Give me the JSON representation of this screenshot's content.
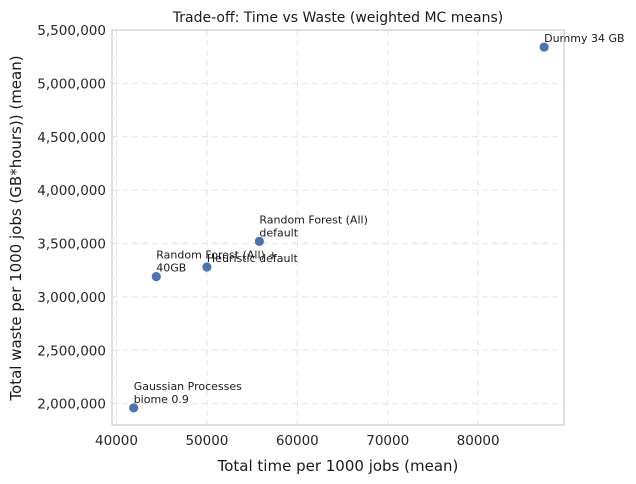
{
  "chart_data": {
    "type": "scatter",
    "title": "Trade-off: Time vs Waste (weighted MC means)",
    "xlabel": "Total time per 1000 jobs (mean)",
    "ylabel": "Total waste per 1000 jobs (GB*hours)) (mean)",
    "xlim": [
      39500,
      89500
    ],
    "ylim": [
      1800000,
      5500000
    ],
    "xticks": [
      40000,
      50000,
      60000,
      70000,
      80000
    ],
    "xtick_labels": [
      "40000",
      "50000",
      "60000",
      "70000",
      "80000"
    ],
    "yticks": [
      2000000,
      2500000,
      3000000,
      3500000,
      4000000,
      4500000,
      5000000,
      5500000
    ],
    "ytick_labels": [
      "2,000,000",
      "2,500,000",
      "3,000,000",
      "3,500,000",
      "4,000,000",
      "4,500,000",
      "5,000,000",
      "5,500,000"
    ],
    "grid": true,
    "points": [
      {
        "label": [
          "Dummy 34 GB"
        ],
        "x": 87300,
        "y": 5340000
      },
      {
        "label": [
          "Random Forest (All)",
          "default"
        ],
        "x": 55800,
        "y": 3520000
      },
      {
        "label": [
          "Heuristic default"
        ],
        "x": 50000,
        "y": 3280000
      },
      {
        "label": [
          "Random Forest (All) +",
          "40GB"
        ],
        "x": 44400,
        "y": 3190000
      },
      {
        "label": [
          "Gaussian Processes",
          "biome 0.9"
        ],
        "x": 41900,
        "y": 1960000
      }
    ],
    "colors": {
      "point": "#4c72b0",
      "frame": "#cccccc",
      "grid": "#e3e3e3"
    }
  }
}
